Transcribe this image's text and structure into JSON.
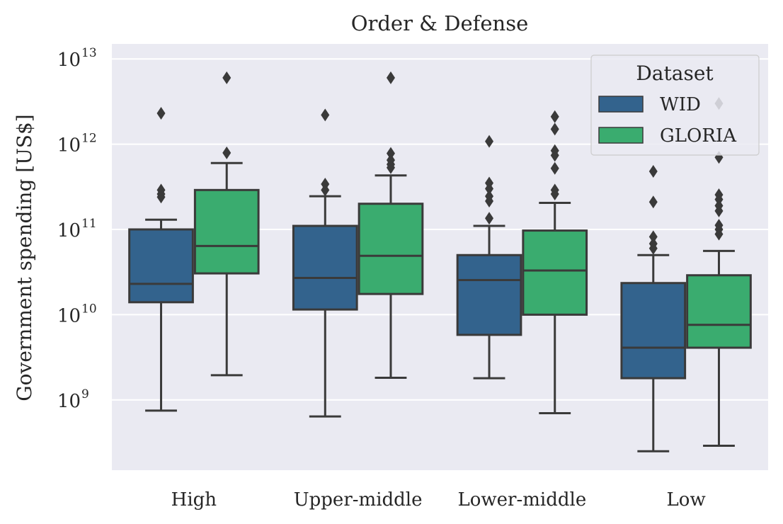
{
  "chart_data": {
    "type": "box",
    "title": "Order & Defense",
    "xlabel": "",
    "ylabel": "Government spending [US$]",
    "y_scale": "log",
    "ylim": [
      150000000,
      15000000000000
    ],
    "y_ticks": [
      {
        "value": 1000000000,
        "base": "10",
        "exp": "9"
      },
      {
        "value": 10000000000,
        "base": "10",
        "exp": "10"
      },
      {
        "value": 100000000000,
        "base": "10",
        "exp": "11"
      },
      {
        "value": 1000000000000,
        "base": "10",
        "exp": "12"
      },
      {
        "value": 10000000000000,
        "base": "10",
        "exp": "13"
      }
    ],
    "grid": "horizontal",
    "categories": [
      "High",
      "Upper-middle",
      "Lower-middle",
      "Low"
    ],
    "legend": {
      "title": "Dataset",
      "placement": "top-right"
    },
    "series": [
      {
        "name": "WID",
        "color": "#33638d",
        "boxes": [
          {
            "whislo": 750000000,
            "q1": 14000000000,
            "median": 23000000000,
            "q3": 100000000000,
            "whishi": 130000000000,
            "fliers": [
              240000000000,
              260000000000,
              290000000000,
              2300000000000
            ]
          },
          {
            "whislo": 640000000,
            "q1": 11500000000,
            "median": 27000000000,
            "q3": 110000000000,
            "whishi": 245000000000,
            "fliers": [
              290000000000,
              340000000000,
              2200000000000
            ]
          },
          {
            "whislo": 1800000000,
            "q1": 5800000000,
            "median": 25500000000,
            "q3": 50000000000,
            "whishi": 110000000000,
            "fliers": [
              135000000000,
              215000000000,
              245000000000,
              300000000000,
              350000000000,
              1080000000000
            ]
          },
          {
            "whislo": 250000000,
            "q1": 1800000000,
            "median": 4100000000,
            "q3": 23500000000,
            "whishi": 50000000000,
            "fliers": [
              60000000000,
              68000000000,
              82000000000,
              210000000000,
              480000000000
            ]
          }
        ]
      },
      {
        "name": "GLORIA",
        "color": "#3aac6f",
        "boxes": [
          {
            "whislo": 1950000000,
            "q1": 30500000000,
            "median": 64000000000,
            "q3": 290000000000,
            "whishi": 600000000000,
            "fliers": [
              790000000000,
              6000000000000
            ]
          },
          {
            "whislo": 1820000000,
            "q1": 17500000000,
            "median": 49000000000,
            "q3": 200000000000,
            "whishi": 430000000000,
            "fliers": [
              530000000000,
              580000000000,
              650000000000,
              780000000000,
              6000000000000
            ]
          },
          {
            "whislo": 700000000,
            "q1": 10000000000,
            "median": 33000000000,
            "q3": 97000000000,
            "whishi": 205000000000,
            "fliers": [
              260000000000,
              290000000000,
              520000000000,
              740000000000,
              840000000000,
              1500000000000,
              2100000000000
            ]
          },
          {
            "whislo": 290000000,
            "q1": 4100000000,
            "median": 7600000000,
            "q3": 29000000000,
            "whishi": 56000000000,
            "fliers": [
              88000000000,
              100000000000,
              112000000000,
              165000000000,
              190000000000,
              225000000000,
              255000000000,
              700000000000,
              3000000000000
            ]
          }
        ]
      }
    ]
  }
}
